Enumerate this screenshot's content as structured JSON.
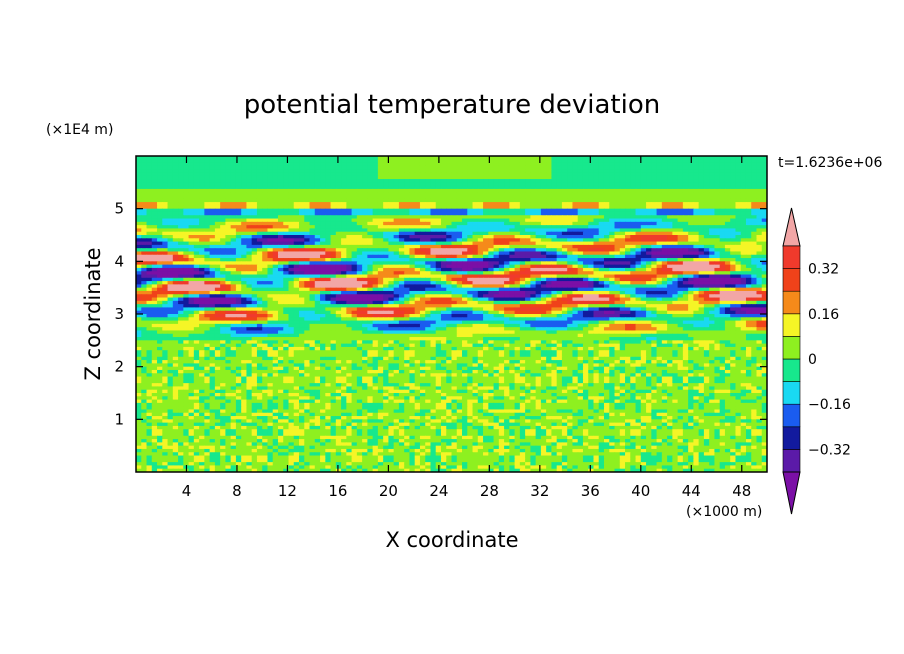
{
  "chart_data": {
    "type": "heatmap",
    "title": "potential temperature deviation",
    "xlabel": "X coordinate",
    "ylabel": "Z coordinate",
    "x_unit": "(×1000 m)",
    "y_unit": "(×1E4 m)",
    "time_label": "t=1.6236e+06",
    "xlim": [
      0,
      50
    ],
    "ylim": [
      0,
      6
    ],
    "x_ticks": [
      4,
      8,
      12,
      16,
      20,
      24,
      28,
      32,
      36,
      40,
      44,
      48
    ],
    "y_ticks": [
      1,
      2,
      3,
      4,
      5
    ],
    "colorbar": {
      "levels": [
        -0.48,
        -0.4,
        -0.32,
        -0.24,
        -0.16,
        -0.08,
        0,
        0.08,
        0.16,
        0.24,
        0.32,
        0.4
      ],
      "labeled_values": [
        "0.32",
        "0.16",
        "0",
        "-0.16",
        "-0.32"
      ],
      "colors": [
        "#7b0fa6",
        "#5b1aa8",
        "#121a9e",
        "#1a5cf0",
        "#19d9f2",
        "#17e88d",
        "#8ef020",
        "#f5f526",
        "#f58a1a",
        "#f0421a",
        "#f03a2c",
        "#f2a6a6"
      ],
      "extend": "both"
    },
    "description_layers": [
      {
        "z_range": [
          0,
          2.5
        ],
        "pattern": "small-scale noise",
        "value_range": [
          -0.08,
          0.08
        ]
      },
      {
        "z_range": [
          2.5,
          4.8
        ],
        "pattern": "tilted wave bands",
        "value_range": [
          -0.48,
          0.4
        ]
      },
      {
        "z_range": [
          4.8,
          6
        ],
        "pattern": "smooth horizontal layers",
        "value_range": [
          -0.16,
          0.16
        ]
      }
    ]
  }
}
